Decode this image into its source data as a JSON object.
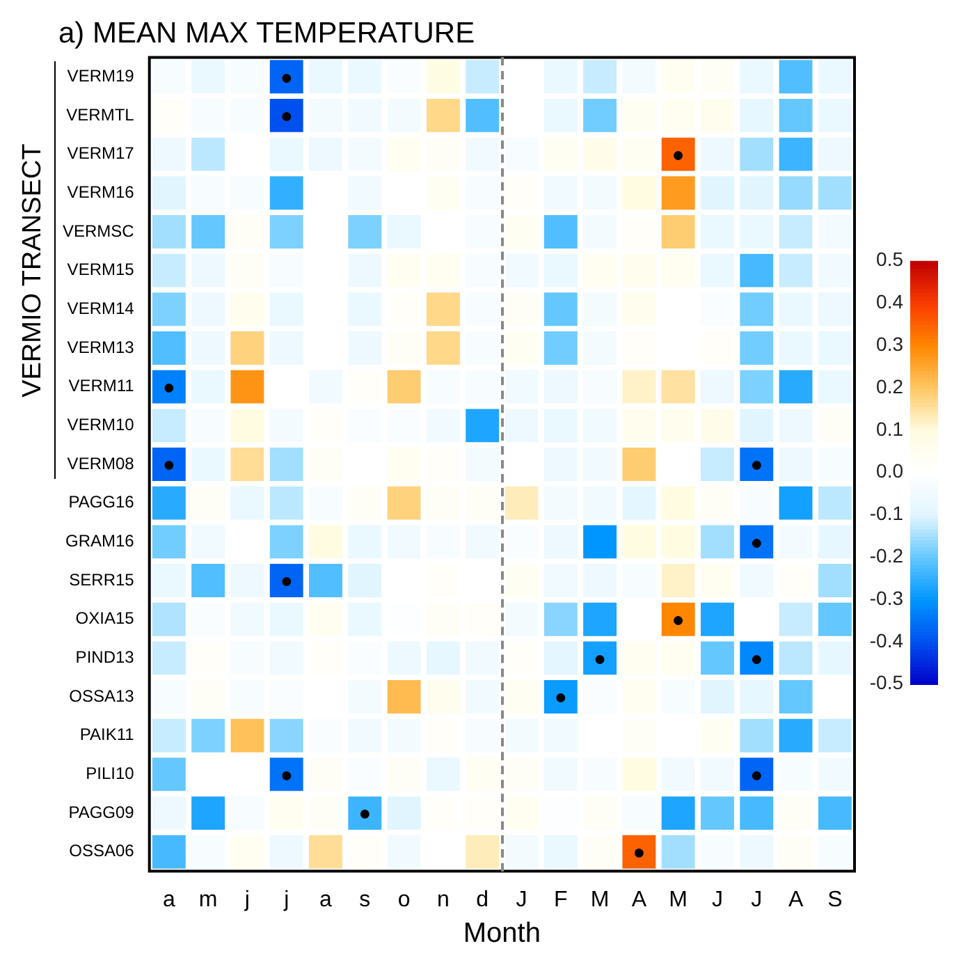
{
  "chart_data": {
    "type": "heatmap",
    "title": "a) MEAN MAX TEMPERATURE",
    "xlabel": "Month",
    "ylabel": "VERMIO TRANSECT",
    "categories": [
      "a",
      "m",
      "j",
      "j",
      "a",
      "s",
      "o",
      "n",
      "d",
      "J",
      "F",
      "M",
      "A",
      "M",
      "J",
      "J",
      "A",
      "S"
    ],
    "y_categories": [
      "VERM19",
      "VERMTL",
      "VERM17",
      "VERM16",
      "VERMSC",
      "VERM15",
      "VERM14",
      "VERM13",
      "VERM11",
      "VERM10",
      "VERM08",
      "PAGG16",
      "GRAM16",
      "SERR15",
      "OXIA15",
      "PIND13",
      "OSSA13",
      "PAIK11",
      "PILI10",
      "PAGG09",
      "OSSA06"
    ],
    "cells": [
      [
        -0.03,
        -0.07,
        -0.03,
        -0.37,
        -0.07,
        -0.07,
        -0.02,
        0.09,
        -0.12,
        0.0,
        -0.07,
        -0.12,
        -0.04,
        0.05,
        0.03,
        -0.07,
        -0.22,
        -0.07
      ],
      [
        0.02,
        -0.03,
        -0.03,
        -0.4,
        -0.04,
        -0.05,
        -0.04,
        0.17,
        -0.22,
        0.0,
        -0.07,
        -0.19,
        0.04,
        0.05,
        0.06,
        -0.08,
        -0.2,
        -0.07
      ],
      [
        -0.06,
        -0.13,
        0.0,
        -0.07,
        -0.06,
        -0.04,
        0.05,
        0.03,
        -0.05,
        -0.03,
        0.04,
        0.07,
        0.04,
        0.35,
        -0.06,
        -0.15,
        -0.24,
        -0.06
      ],
      [
        -0.1,
        -0.03,
        -0.03,
        -0.25,
        0.0,
        -0.05,
        0.0,
        0.04,
        -0.03,
        0.02,
        -0.05,
        -0.04,
        0.1,
        0.27,
        -0.1,
        -0.1,
        -0.16,
        -0.15
      ],
      [
        -0.15,
        -0.2,
        0.03,
        -0.18,
        0.0,
        -0.18,
        -0.07,
        0.0,
        -0.03,
        0.04,
        -0.22,
        -0.04,
        0.02,
        0.19,
        -0.07,
        -0.07,
        -0.12,
        -0.04
      ],
      [
        -0.12,
        -0.06,
        0.03,
        -0.03,
        0.0,
        -0.06,
        0.05,
        0.05,
        -0.03,
        -0.05,
        -0.07,
        0.05,
        0.06,
        0.05,
        -0.07,
        -0.23,
        -0.12,
        -0.05
      ],
      [
        -0.18,
        -0.06,
        0.06,
        -0.07,
        0.0,
        -0.07,
        0.02,
        0.17,
        -0.03,
        0.03,
        -0.2,
        -0.04,
        0.06,
        0.0,
        -0.02,
        -0.19,
        -0.07,
        -0.06
      ],
      [
        -0.22,
        -0.06,
        0.18,
        -0.06,
        0.0,
        -0.06,
        0.03,
        0.17,
        -0.03,
        0.04,
        -0.19,
        -0.04,
        0.02,
        0.0,
        0.02,
        -0.19,
        -0.07,
        -0.07
      ],
      [
        -0.33,
        -0.07,
        0.28,
        0.0,
        -0.05,
        0.02,
        0.19,
        -0.03,
        -0.03,
        -0.05,
        -0.06,
        -0.03,
        0.12,
        0.15,
        -0.06,
        -0.18,
        -0.26,
        -0.07
      ],
      [
        -0.12,
        -0.03,
        0.1,
        -0.04,
        0.02,
        -0.02,
        -0.02,
        -0.05,
        -0.27,
        -0.06,
        -0.07,
        -0.05,
        0.06,
        0.06,
        0.07,
        -0.1,
        -0.06,
        0.03
      ],
      [
        -0.37,
        -0.07,
        0.16,
        -0.15,
        0.03,
        0.0,
        0.05,
        0.02,
        -0.04,
        0.0,
        -0.06,
        -0.05,
        0.19,
        0.0,
        -0.12,
        -0.35,
        -0.06,
        -0.03
      ],
      [
        -0.26,
        0.03,
        -0.07,
        -0.13,
        -0.03,
        0.03,
        0.18,
        0.03,
        0.03,
        0.13,
        -0.04,
        -0.05,
        -0.09,
        0.1,
        0.03,
        -0.03,
        -0.28,
        -0.13
      ],
      [
        -0.19,
        -0.05,
        0.0,
        -0.18,
        0.1,
        -0.07,
        -0.05,
        -0.03,
        -0.05,
        -0.02,
        -0.06,
        -0.3,
        0.1,
        0.1,
        -0.15,
        -0.35,
        -0.04,
        -0.08
      ],
      [
        -0.07,
        -0.22,
        -0.06,
        -0.37,
        -0.22,
        -0.1,
        0.0,
        0.02,
        0.0,
        0.04,
        -0.05,
        -0.06,
        -0.03,
        0.12,
        0.05,
        -0.05,
        0.02,
        -0.15
      ],
      [
        -0.14,
        -0.02,
        -0.05,
        -0.07,
        0.05,
        -0.07,
        -0.01,
        0.03,
        0.02,
        -0.04,
        -0.17,
        -0.27,
        0.0,
        0.3,
        -0.27,
        0.0,
        -0.12,
        -0.2
      ],
      [
        -0.12,
        0.02,
        -0.03,
        -0.05,
        0.02,
        -0.02,
        -0.06,
        -0.08,
        -0.05,
        0.02,
        -0.09,
        -0.28,
        0.05,
        0.05,
        -0.2,
        -0.32,
        -0.13,
        -0.08
      ],
      [
        -0.03,
        0.03,
        -0.03,
        -0.02,
        0.0,
        -0.04,
        0.22,
        0.06,
        -0.05,
        0.04,
        -0.29,
        -0.02,
        0.05,
        -0.03,
        -0.1,
        -0.08,
        -0.2,
        0.0
      ],
      [
        -0.12,
        -0.18,
        0.21,
        -0.17,
        -0.02,
        -0.05,
        -0.04,
        0.02,
        -0.03,
        -0.04,
        -0.05,
        0.0,
        0.03,
        0.0,
        0.04,
        -0.15,
        -0.26,
        -0.12
      ],
      [
        -0.2,
        0.0,
        0.0,
        -0.35,
        0.03,
        -0.02,
        0.03,
        -0.07,
        0.04,
        0.03,
        -0.05,
        -0.03,
        0.1,
        -0.05,
        -0.05,
        -0.37,
        -0.03,
        -0.05
      ],
      [
        -0.06,
        -0.27,
        -0.03,
        0.05,
        0.03,
        -0.24,
        -0.1,
        0.02,
        0.02,
        0.05,
        -0.01,
        0.03,
        -0.03,
        -0.27,
        -0.2,
        -0.23,
        0.03,
        -0.23
      ],
      [
        -0.23,
        -0.03,
        0.05,
        -0.06,
        0.16,
        0.02,
        -0.05,
        0.0,
        0.13,
        -0.04,
        -0.07,
        0.03,
        0.35,
        -0.15,
        -0.03,
        -0.06,
        0.03,
        -0.03
      ]
    ],
    "cell_labels": [
      [
        null,
        null,
        null,
        "●",
        null,
        null,
        null,
        null,
        null,
        null,
        null,
        null,
        null,
        null,
        null,
        null,
        null,
        null
      ],
      [
        null,
        null,
        null,
        "●",
        null,
        null,
        null,
        null,
        null,
        null,
        null,
        null,
        null,
        null,
        null,
        null,
        null,
        null
      ],
      [
        null,
        null,
        null,
        null,
        null,
        null,
        null,
        null,
        null,
        null,
        null,
        null,
        null,
        "●",
        null,
        null,
        null,
        null
      ],
      [
        null,
        null,
        null,
        null,
        null,
        null,
        null,
        null,
        null,
        null,
        null,
        null,
        null,
        null,
        null,
        null,
        null,
        null
      ],
      [
        null,
        null,
        null,
        null,
        null,
        null,
        null,
        null,
        null,
        null,
        null,
        null,
        null,
        null,
        null,
        null,
        null,
        null
      ],
      [
        null,
        null,
        null,
        null,
        null,
        null,
        null,
        null,
        null,
        null,
        null,
        null,
        null,
        null,
        null,
        null,
        null,
        null
      ],
      [
        null,
        null,
        null,
        null,
        null,
        null,
        null,
        null,
        null,
        null,
        null,
        null,
        null,
        null,
        null,
        null,
        null,
        null
      ],
      [
        null,
        null,
        null,
        null,
        null,
        null,
        null,
        null,
        null,
        null,
        null,
        null,
        null,
        null,
        null,
        null,
        null,
        null
      ],
      [
        "●",
        null,
        null,
        null,
        null,
        null,
        null,
        null,
        null,
        null,
        null,
        null,
        null,
        null,
        null,
        null,
        null,
        null
      ],
      [
        null,
        null,
        null,
        null,
        null,
        null,
        null,
        null,
        null,
        null,
        null,
        null,
        null,
        null,
        null,
        null,
        null,
        null
      ],
      [
        "●",
        null,
        null,
        null,
        null,
        null,
        null,
        null,
        null,
        null,
        null,
        null,
        null,
        null,
        null,
        "●",
        null,
        null
      ],
      [
        null,
        null,
        null,
        null,
        null,
        null,
        null,
        null,
        null,
        null,
        null,
        null,
        null,
        null,
        null,
        null,
        null,
        null
      ],
      [
        null,
        null,
        null,
        null,
        null,
        null,
        null,
        null,
        null,
        null,
        null,
        null,
        null,
        null,
        null,
        "●",
        null,
        null
      ],
      [
        null,
        null,
        null,
        "●",
        null,
        null,
        null,
        null,
        null,
        null,
        null,
        null,
        null,
        null,
        null,
        null,
        null,
        null
      ],
      [
        null,
        null,
        null,
        null,
        null,
        null,
        null,
        null,
        null,
        null,
        null,
        null,
        null,
        "●",
        null,
        null,
        null,
        null
      ],
      [
        null,
        null,
        null,
        null,
        null,
        null,
        null,
        null,
        null,
        null,
        null,
        "●",
        null,
        null,
        null,
        "●",
        null,
        null
      ],
      [
        null,
        null,
        null,
        null,
        null,
        null,
        null,
        null,
        null,
        null,
        "●",
        null,
        null,
        null,
        null,
        null,
        null,
        null
      ],
      [
        null,
        null,
        null,
        null,
        null,
        null,
        null,
        null,
        null,
        null,
        null,
        null,
        null,
        null,
        null,
        null,
        null,
        null
      ],
      [
        null,
        null,
        null,
        "●",
        null,
        null,
        null,
        null,
        null,
        null,
        null,
        null,
        null,
        null,
        null,
        "●",
        null,
        null
      ],
      [
        null,
        null,
        null,
        null,
        null,
        "●",
        null,
        null,
        null,
        null,
        null,
        null,
        null,
        null,
        null,
        null,
        null,
        null
      ],
      [
        null,
        null,
        null,
        null,
        null,
        null,
        null,
        null,
        null,
        null,
        null,
        null,
        "●",
        null,
        null,
        null,
        null,
        null
      ]
    ],
    "clim": [
      -0.5,
      0.5
    ],
    "cticks": [
      -0.5,
      -0.4,
      -0.3,
      -0.2,
      -0.1,
      {
        "value": 0,
        "label": "0.0"
      },
      0.1,
      0.2,
      0.3,
      0.4,
      0.5
    ]
  }
}
